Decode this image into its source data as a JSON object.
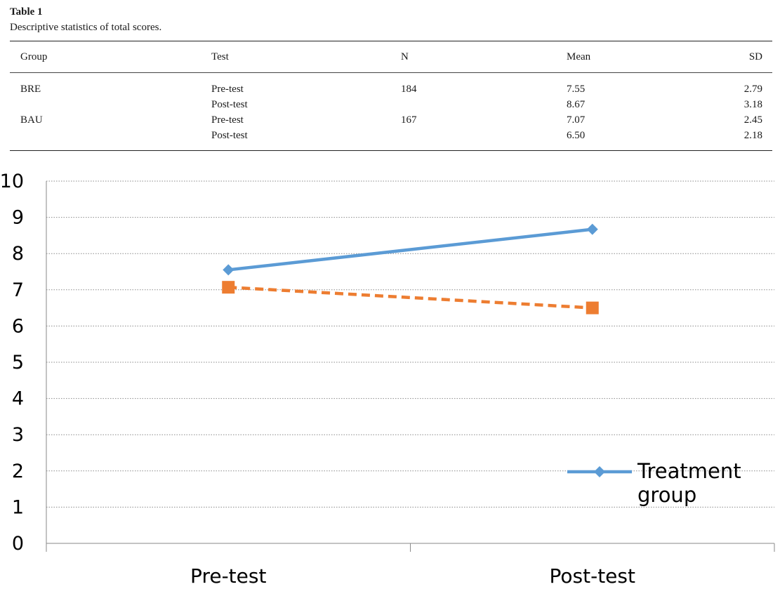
{
  "table": {
    "label": "Table 1",
    "caption": "Descriptive statistics of total scores.",
    "headers": [
      "Group",
      "Test",
      "N",
      "Mean",
      "SD"
    ],
    "rows": [
      [
        "BRE",
        "Pre-test",
        "184",
        "7.55",
        "2.79"
      ],
      [
        "",
        "Post-test",
        "",
        "8.67",
        "3.18"
      ],
      [
        "BAU",
        "Pre-test",
        "167",
        "7.07",
        "2.45"
      ],
      [
        "",
        "Post-test",
        "",
        "6.50",
        "2.18"
      ]
    ]
  },
  "chart_data": {
    "type": "line",
    "categories": [
      "Pre-test",
      "Post-test"
    ],
    "series": [
      {
        "name": "Treatment group",
        "values": [
          7.55,
          8.67
        ],
        "color": "#5B9BD5",
        "marker": "diamond",
        "dash": "solid"
      },
      {
        "values": [
          7.07,
          6.5
        ],
        "color": "#ED7D31",
        "marker": "square",
        "dash": "dashed"
      }
    ],
    "yticks": [
      "0",
      "1",
      "2",
      "3",
      "4",
      "5",
      "6",
      "7",
      "8",
      "9",
      "10"
    ],
    "ylim": [
      0,
      10
    ],
    "grid": true,
    "legend_position": "bottom-right"
  }
}
